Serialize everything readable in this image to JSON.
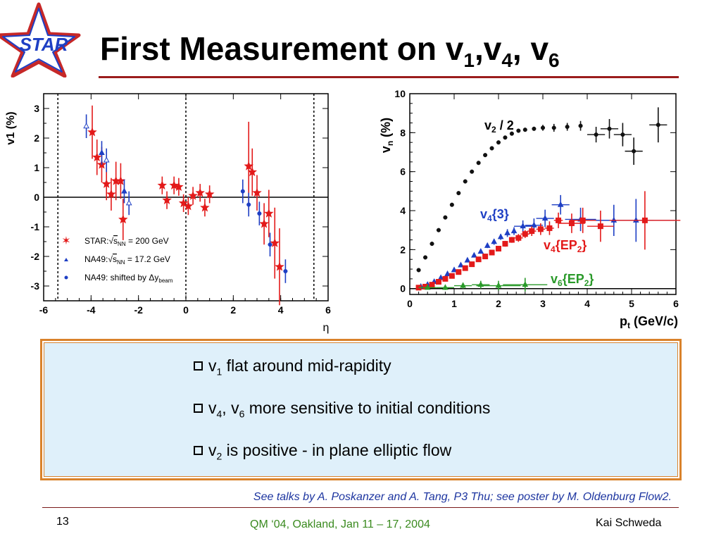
{
  "logo_text": "STAR",
  "title": {
    "main": "First Measurement on v",
    "s1": "1",
    "t2": ",v",
    "s2": "4",
    "t3": ", v",
    "s3": "6"
  },
  "chart_data": [
    {
      "type": "scatter",
      "xlabel": "η",
      "ylabel": "v1 (%)",
      "xlim": [
        -6,
        6
      ],
      "ylim": [
        -3.5,
        3.5
      ],
      "xticks": [
        "-6",
        "-4",
        "-2",
        "0",
        "2",
        "4",
        "6"
      ],
      "yticks": [
        "-3",
        "-2",
        "-1",
        "0",
        "1",
        "2",
        "3"
      ],
      "legend": {
        "placement": "bottom-left",
        "entries": [
          {
            "prefix": "STAR:",
            "sub": "NN",
            "rest": "= 200 GeV"
          },
          {
            "prefix": "NA49:",
            "sub": "NN",
            "rest": "= 17.2 GeV"
          },
          {
            "prefix": "NA49: shifted by Δy",
            "sub": "beam",
            "rest": ""
          }
        ]
      },
      "series": [
        {
          "name": "STAR: √sNN = 200 GeV",
          "color": "#e31a1a",
          "marker": "star",
          "points": [
            [
              -3.95,
              2.2,
              0.9
            ],
            [
              -3.75,
              1.35,
              0.6
            ],
            [
              -3.55,
              1.1,
              0.6
            ],
            [
              -3.35,
              0.45,
              0.55
            ],
            [
              -3.15,
              0.1,
              0.55
            ],
            [
              -2.95,
              0.55,
              0.65
            ],
            [
              -2.75,
              0.55,
              0.6
            ],
            [
              -2.65,
              -0.75,
              0.7
            ],
            [
              -1.0,
              0.4,
              0.3
            ],
            [
              -0.8,
              -0.1,
              0.3
            ],
            [
              -0.5,
              0.4,
              0.3
            ],
            [
              -0.3,
              0.35,
              0.3
            ],
            [
              -0.1,
              -0.2,
              0.3
            ],
            [
              0.1,
              -0.3,
              0.3
            ],
            [
              0.3,
              0.05,
              0.3
            ],
            [
              0.6,
              0.15,
              0.3
            ],
            [
              0.8,
              -0.35,
              0.3
            ],
            [
              1.0,
              0.1,
              0.3
            ],
            [
              2.65,
              1.05,
              1.5
            ],
            [
              2.8,
              0.85,
              0.8
            ],
            [
              3.0,
              0.15,
              0.6
            ],
            [
              3.3,
              -0.9,
              0.7
            ],
            [
              3.5,
              -0.55,
              0.8
            ],
            [
              3.75,
              -1.55,
              1.2
            ],
            [
              3.95,
              -2.35,
              1.3
            ]
          ]
        },
        {
          "name": "NA49: √sNN = 17.2 GeV",
          "color": "#1e3fc4",
          "marker": "triangle",
          "points": [
            [
              -4.2,
              2.4,
              0.4
            ],
            [
              -3.55,
              1.5,
              0.4
            ],
            [
              -3.35,
              1.25,
              0.4
            ],
            [
              -2.6,
              0.2,
              0.4
            ],
            [
              -2.4,
              -0.2,
              0.4
            ]
          ]
        },
        {
          "name": "NA49: shifted by Δybeam",
          "color": "#1e3fc4",
          "marker": "circle",
          "points": [
            [
              2.4,
              0.2,
              0.4
            ],
            [
              2.65,
              -0.25,
              0.4
            ],
            [
              3.1,
              -0.55,
              0.4
            ],
            [
              3.55,
              -1.6,
              0.4
            ],
            [
              4.2,
              -2.5,
              0.4
            ]
          ]
        }
      ]
    },
    {
      "type": "scatter",
      "xlabel": "pt (GeV/c)",
      "ylabel": "vn (%)",
      "xlim": [
        0,
        6
      ],
      "ylim": [
        -0.3,
        10
      ],
      "xticks": [
        "0",
        "1",
        "2",
        "3",
        "4",
        "5",
        "6"
      ],
      "yticks": [
        "0",
        "2",
        "4",
        "6",
        "8",
        "10"
      ],
      "annotations": [
        {
          "main": "v",
          "sub": "2",
          "rest": " / 2"
        },
        {
          "main": "v",
          "sub": "4",
          "rest": "{3}"
        },
        {
          "main": "v",
          "sub": "4",
          "rest": "{EP",
          "sub2": "2",
          "rest2": "}"
        },
        {
          "main": "v",
          "sub": "6",
          "rest": "{EP",
          "sub2": "2",
          "rest2": "}"
        }
      ],
      "series": [
        {
          "name": "v2 / 2",
          "color": "#111111",
          "marker": "circle",
          "points": [
            [
              0.2,
              0.95,
              0.05
            ],
            [
              0.35,
              1.6,
              0.05
            ],
            [
              0.5,
              2.3,
              0.05
            ],
            [
              0.65,
              3.0,
              0.05
            ],
            [
              0.8,
              3.65,
              0.05
            ],
            [
              0.95,
              4.3,
              0.05
            ],
            [
              1.1,
              4.9,
              0.05
            ],
            [
              1.25,
              5.5,
              0.05
            ],
            [
              1.4,
              6.0,
              0.05
            ],
            [
              1.55,
              6.45,
              0.05
            ],
            [
              1.7,
              6.85,
              0.05
            ],
            [
              1.85,
              7.2,
              0.05
            ],
            [
              2.0,
              7.5,
              0.05
            ],
            [
              2.15,
              7.75,
              0.05
            ],
            [
              2.3,
              7.95,
              0.05
            ],
            [
              2.45,
              8.1,
              0.05
            ],
            [
              2.6,
              8.15,
              0.1
            ],
            [
              2.8,
              8.2,
              0.1
            ],
            [
              3.0,
              8.25,
              0.15
            ],
            [
              3.25,
              8.25,
              0.2
            ],
            [
              3.55,
              8.3,
              0.2
            ],
            [
              3.85,
              8.35,
              0.25
            ],
            [
              4.2,
              7.9,
              0.4
            ],
            [
              4.5,
              8.2,
              0.5
            ],
            [
              4.8,
              7.9,
              0.6
            ],
            [
              5.05,
              7.05,
              0.7
            ],
            [
              5.6,
              8.4,
              0.9
            ]
          ]
        },
        {
          "name": "v4{3}",
          "color": "#1e3fc4",
          "marker": "triangle",
          "points": [
            [
              0.25,
              0.1,
              0.05
            ],
            [
              0.4,
              0.2,
              0.05
            ],
            [
              0.55,
              0.35,
              0.05
            ],
            [
              0.7,
              0.55,
              0.05
            ],
            [
              0.85,
              0.75,
              0.05
            ],
            [
              1.0,
              0.95,
              0.05
            ],
            [
              1.15,
              1.2,
              0.05
            ],
            [
              1.3,
              1.45,
              0.05
            ],
            [
              1.45,
              1.7,
              0.08
            ],
            [
              1.6,
              1.9,
              0.1
            ],
            [
              1.75,
              2.2,
              0.12
            ],
            [
              1.9,
              2.4,
              0.15
            ],
            [
              2.05,
              2.65,
              0.15
            ],
            [
              2.2,
              2.85,
              0.2
            ],
            [
              2.35,
              2.95,
              0.2
            ],
            [
              2.55,
              3.2,
              0.3
            ],
            [
              2.8,
              3.25,
              0.35
            ],
            [
              3.05,
              3.6,
              0.45
            ],
            [
              3.4,
              4.3,
              0.5
            ],
            [
              3.85,
              3.55,
              0.6
            ],
            [
              4.6,
              3.5,
              0.8
            ],
            [
              5.1,
              3.5,
              1.1
            ]
          ]
        },
        {
          "name": "v4{EP2}",
          "color": "#e31a1a",
          "marker": "square",
          "points": [
            [
              0.2,
              0.05,
              0.05
            ],
            [
              0.35,
              0.1,
              0.05
            ],
            [
              0.5,
              0.2,
              0.05
            ],
            [
              0.65,
              0.35,
              0.05
            ],
            [
              0.8,
              0.5,
              0.05
            ],
            [
              0.95,
              0.65,
              0.05
            ],
            [
              1.1,
              0.85,
              0.05
            ],
            [
              1.25,
              1.05,
              0.05
            ],
            [
              1.4,
              1.25,
              0.08
            ],
            [
              1.55,
              1.5,
              0.08
            ],
            [
              1.7,
              1.65,
              0.1
            ],
            [
              1.85,
              1.85,
              0.1
            ],
            [
              2.0,
              2.05,
              0.12
            ],
            [
              2.15,
              2.3,
              0.15
            ],
            [
              2.3,
              2.5,
              0.15
            ],
            [
              2.45,
              2.6,
              0.2
            ],
            [
              2.6,
              2.8,
              0.2
            ],
            [
              2.75,
              2.95,
              0.25
            ],
            [
              2.95,
              3.05,
              0.3
            ],
            [
              3.15,
              3.1,
              0.35
            ],
            [
              3.35,
              3.5,
              0.4
            ],
            [
              3.65,
              3.35,
              0.5
            ],
            [
              3.9,
              3.5,
              0.65
            ],
            [
              4.3,
              3.2,
              0.8
            ],
            [
              5.3,
              3.5,
              1.5
            ]
          ]
        },
        {
          "name": "v6{EP2}",
          "color": "#2a9a2a",
          "marker": "triangle",
          "points": [
            [
              0.4,
              0.05,
              0.1
            ],
            [
              0.8,
              0.05,
              0.12
            ],
            [
              1.2,
              0.15,
              0.15
            ],
            [
              1.6,
              0.2,
              0.2
            ],
            [
              2.0,
              0.15,
              0.25
            ],
            [
              2.6,
              0.2,
              0.35
            ]
          ]
        }
      ]
    }
  ],
  "bullets": [
    {
      "pre": "v",
      "s1": "1",
      "text": " flat around mid-rapidity"
    },
    {
      "pre": "v",
      "s1": "4",
      "mid": ", v",
      "s2": "6",
      "text": " more sensitive to initial conditions"
    },
    {
      "pre": "v",
      "s1": "2",
      "text": " is positive - in plane elliptic flow"
    }
  ],
  "credits": "See talks by A. Poskanzer and A. Tang, P3 Thu; see poster by M. Oldenburg Flow2.",
  "footer": {
    "page": "13",
    "conference": "QM ‘04, Oakland, Jan 11 – 17, 2004",
    "author": "Kai Schweda"
  },
  "colors": {
    "star_red": "#e31a1a",
    "blue": "#1e3fc4",
    "green": "#2a9a2a",
    "panel_bg": "#dff0fa",
    "panel_border": "#d9822b",
    "title_rule": "#9b1c1c"
  }
}
